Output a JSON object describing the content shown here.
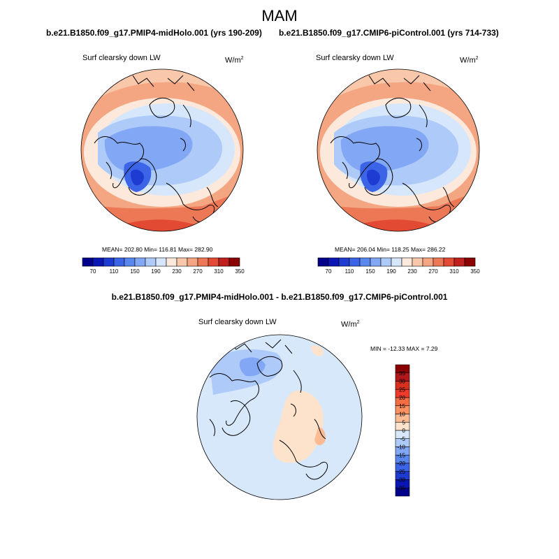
{
  "season": "MAM",
  "panels": [
    {
      "title": "b.e21.B1850.f09_g17.PMIP4-midHolo.001 (yrs 190-209)",
      "field": "Surf clearsky down LW",
      "units": "W/m",
      "units_exp": "2",
      "stats": "MEAN= 202.80  Min= 116.81  Max= 282.90"
    },
    {
      "title": "b.e21.B1850.f09_g17.CMIP6-piControl.001 (yrs 714-733)",
      "field": "Surf clearsky down LW",
      "units": "W/m",
      "units_exp": "2",
      "stats": "MEAN= 206.04  Min= 118.25  Max= 286.22"
    }
  ],
  "diff": {
    "title": "b.e21.B1850.f09_g17.PMIP4-midHolo.001 - b.e21.B1850.f09_g17.CMIP6-piControl.001",
    "field": "Surf clearsky down LW",
    "units": "W/m",
    "units_exp": "2",
    "stats": "MIN = -12.33 MAX =   7.29"
  },
  "chart_data": [
    {
      "type": "heatmap",
      "projection": "polar-stereographic (north pole)",
      "title": "b.e21.B1850.f09_g17.PMIP4-midHolo.001 (yrs 190-209)",
      "variable": "Surf clearsky down LW",
      "units": "W/m^2",
      "mean": 202.8,
      "min": 116.81,
      "max": 282.9,
      "colorbar": {
        "labels": [
          "70",
          "110",
          "150",
          "190",
          "230",
          "270",
          "310",
          "350"
        ],
        "colors": [
          "#00008c",
          "#0a17b4",
          "#1f3cd2",
          "#3c64e6",
          "#5a87ee",
          "#82a8f5",
          "#aecaf9",
          "#d7e7fb",
          "#fde9dc",
          "#f9c7a9",
          "#f4a582",
          "#ed7856",
          "#e34a33",
          "#c0201e",
          "#8b0000"
        ]
      }
    },
    {
      "type": "heatmap",
      "projection": "polar-stereographic (north pole)",
      "title": "b.e21.B1850.f09_g17.CMIP6-piControl.001 (yrs 714-733)",
      "variable": "Surf clearsky down LW",
      "units": "W/m^2",
      "mean": 206.04,
      "min": 118.25,
      "max": 286.22,
      "colorbar": {
        "labels": [
          "70",
          "110",
          "150",
          "190",
          "230",
          "270",
          "310",
          "350"
        ],
        "colors": [
          "#00008c",
          "#0a17b4",
          "#1f3cd2",
          "#3c64e6",
          "#5a87ee",
          "#82a8f5",
          "#aecaf9",
          "#d7e7fb",
          "#fde9dc",
          "#f9c7a9",
          "#f4a582",
          "#ed7856",
          "#e34a33",
          "#c0201e",
          "#8b0000"
        ]
      }
    },
    {
      "type": "heatmap",
      "projection": "polar-stereographic (north pole)",
      "title": "b.e21.B1850.f09_g17.PMIP4-midHolo.001 - b.e21.B1850.f09_g17.CMIP6-piControl.001",
      "variable": "Surf clearsky down LW",
      "units": "W/m^2",
      "min": -12.33,
      "max": 7.29,
      "colorbar": {
        "labels": [
          "35",
          "30",
          "25",
          "20",
          "15",
          "10",
          "5",
          "0",
          "-5",
          "-10",
          "-15",
          "-20",
          "-25",
          "-30",
          "-35"
        ],
        "colors": [
          "#8b0000",
          "#b2181b",
          "#d7301f",
          "#ef3b2c",
          "#f46d43",
          "#fa9261",
          "#fdbb94",
          "#fde2cc",
          "#d7e8fb",
          "#aecaf9",
          "#82a8f5",
          "#5a87ee",
          "#3c64e6",
          "#1f3cd2",
          "#0a17b4",
          "#00008c"
        ]
      }
    }
  ]
}
